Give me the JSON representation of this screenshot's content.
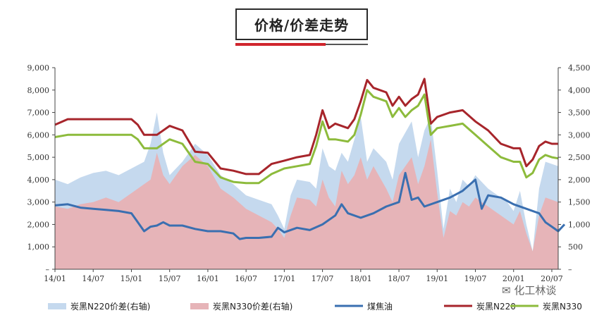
{
  "title": "价格/价差走势",
  "watermark": "化工林谈",
  "chart_data": {
    "type": "area",
    "x_ticks": [
      "14/01",
      "14/07",
      "15/01",
      "15/07",
      "16/01",
      "16/07",
      "17/01",
      "17/07",
      "18/01",
      "18/07",
      "19/01",
      "19/07",
      "20/01",
      "20/07"
    ],
    "y_left": {
      "ylim": [
        0,
        9000
      ],
      "ticks": [
        "–",
        "1,000",
        "2,000",
        "3,000",
        "4,000",
        "5,000",
        "6,000",
        "7,000",
        "8,000",
        "9,000"
      ]
    },
    "y_right": {
      "ylim": [
        0,
        4500
      ],
      "ticks": [
        "–",
        "500",
        "1,000",
        "1,500",
        "2,000",
        "2,500",
        "3,000",
        "3,500",
        "4,000",
        "4,500"
      ]
    },
    "x_domain": [
      0,
      79
    ],
    "series": [
      {
        "name": "炭黑N220价差(右轴)",
        "axis": "right",
        "kind": "area",
        "color": "#c5d9ee",
        "points": [
          [
            0,
            2000
          ],
          [
            2,
            1900
          ],
          [
            4,
            2050
          ],
          [
            6,
            2150
          ],
          [
            8,
            2200
          ],
          [
            10,
            2100
          ],
          [
            12,
            2250
          ],
          [
            14,
            2400
          ],
          [
            15,
            2800
          ],
          [
            16,
            3500
          ],
          [
            17,
            2600
          ],
          [
            18,
            2100
          ],
          [
            20,
            2400
          ],
          [
            22,
            2800
          ],
          [
            24,
            2550
          ],
          [
            26,
            2100
          ],
          [
            28,
            1900
          ],
          [
            30,
            1650
          ],
          [
            32,
            1550
          ],
          [
            34,
            1450
          ],
          [
            35,
            1200
          ],
          [
            36,
            900
          ],
          [
            37,
            1650
          ],
          [
            38,
            2000
          ],
          [
            40,
            1950
          ],
          [
            41,
            1800
          ],
          [
            42,
            2700
          ],
          [
            43,
            2300
          ],
          [
            44,
            2200
          ],
          [
            45,
            2600
          ],
          [
            46,
            2400
          ],
          [
            47,
            2900
          ],
          [
            48,
            3400
          ],
          [
            49,
            2400
          ],
          [
            50,
            2700
          ],
          [
            52,
            2400
          ],
          [
            53,
            2000
          ],
          [
            54,
            2800
          ],
          [
            56,
            3300
          ],
          [
            57,
            2500
          ],
          [
            58,
            3100
          ],
          [
            59,
            3400
          ],
          [
            60,
            2200
          ],
          [
            61,
            900
          ],
          [
            62,
            1800
          ],
          [
            63,
            1500
          ],
          [
            64,
            2000
          ],
          [
            65,
            1850
          ],
          [
            66,
            2100
          ],
          [
            67,
            1950
          ],
          [
            68,
            1800
          ],
          [
            69,
            1700
          ],
          [
            70,
            1600
          ],
          [
            71,
            1500
          ],
          [
            72,
            1300
          ],
          [
            73,
            1750
          ],
          [
            74,
            1000
          ],
          [
            75,
            400
          ],
          [
            76,
            1800
          ],
          [
            77,
            2400
          ],
          [
            78,
            2350
          ],
          [
            79,
            2300
          ]
        ]
      },
      {
        "name": "炭黑N330价差(右轴)",
        "axis": "right",
        "kind": "area",
        "color": "#e6b4b8",
        "points": [
          [
            0,
            1400
          ],
          [
            2,
            1350
          ],
          [
            4,
            1450
          ],
          [
            6,
            1500
          ],
          [
            8,
            1600
          ],
          [
            10,
            1500
          ],
          [
            12,
            1700
          ],
          [
            14,
            1900
          ],
          [
            15,
            2000
          ],
          [
            16,
            2600
          ],
          [
            17,
            2100
          ],
          [
            18,
            1900
          ],
          [
            20,
            2300
          ],
          [
            22,
            2550
          ],
          [
            24,
            2300
          ],
          [
            26,
            1800
          ],
          [
            28,
            1600
          ],
          [
            30,
            1350
          ],
          [
            32,
            1200
          ],
          [
            34,
            1050
          ],
          [
            35,
            900
          ],
          [
            36,
            700
          ],
          [
            37,
            1200
          ],
          [
            38,
            1600
          ],
          [
            40,
            1550
          ],
          [
            41,
            1400
          ],
          [
            42,
            2000
          ],
          [
            43,
            1600
          ],
          [
            44,
            1400
          ],
          [
            45,
            2200
          ],
          [
            46,
            1900
          ],
          [
            47,
            2100
          ],
          [
            48,
            2500
          ],
          [
            49,
            2000
          ],
          [
            50,
            2300
          ],
          [
            52,
            1800
          ],
          [
            53,
            1500
          ],
          [
            54,
            2100
          ],
          [
            56,
            2500
          ],
          [
            57,
            1900
          ],
          [
            58,
            2300
          ],
          [
            59,
            2900
          ],
          [
            60,
            1700
          ],
          [
            61,
            700
          ],
          [
            62,
            1300
          ],
          [
            63,
            1200
          ],
          [
            64,
            1500
          ],
          [
            65,
            1400
          ],
          [
            66,
            1600
          ],
          [
            67,
            1500
          ],
          [
            68,
            1400
          ],
          [
            69,
            1300
          ],
          [
            70,
            1200
          ],
          [
            71,
            1100
          ],
          [
            72,
            1000
          ],
          [
            73,
            1300
          ],
          [
            74,
            800
          ],
          [
            75,
            400
          ],
          [
            76,
            1200
          ],
          [
            77,
            1600
          ],
          [
            78,
            1550
          ],
          [
            79,
            1500
          ]
        ]
      },
      {
        "name": "煤焦油",
        "axis": "left",
        "kind": "line",
        "color": "#3a6fb0",
        "points": [
          [
            0,
            2850
          ],
          [
            2,
            2900
          ],
          [
            4,
            2750
          ],
          [
            6,
            2700
          ],
          [
            8,
            2650
          ],
          [
            10,
            2600
          ],
          [
            12,
            2500
          ],
          [
            13,
            2100
          ],
          [
            14,
            1700
          ],
          [
            15,
            1900
          ],
          [
            16,
            1950
          ],
          [
            17,
            2100
          ],
          [
            18,
            1950
          ],
          [
            20,
            1950
          ],
          [
            22,
            1800
          ],
          [
            24,
            1700
          ],
          [
            26,
            1700
          ],
          [
            28,
            1600
          ],
          [
            29,
            1350
          ],
          [
            30,
            1400
          ],
          [
            32,
            1400
          ],
          [
            34,
            1450
          ],
          [
            35,
            1850
          ],
          [
            36,
            1650
          ],
          [
            38,
            1850
          ],
          [
            40,
            1750
          ],
          [
            42,
            2000
          ],
          [
            44,
            2400
          ],
          [
            45,
            2900
          ],
          [
            46,
            2500
          ],
          [
            48,
            2300
          ],
          [
            50,
            2500
          ],
          [
            52,
            2800
          ],
          [
            54,
            3000
          ],
          [
            55,
            4300
          ],
          [
            56,
            3100
          ],
          [
            57,
            3200
          ],
          [
            58,
            2800
          ],
          [
            60,
            3000
          ],
          [
            62,
            3200
          ],
          [
            64,
            3500
          ],
          [
            66,
            4000
          ],
          [
            67,
            2700
          ],
          [
            68,
            3300
          ],
          [
            70,
            3200
          ],
          [
            72,
            2900
          ],
          [
            74,
            2700
          ],
          [
            76,
            2500
          ],
          [
            77,
            2100
          ],
          [
            78,
            1900
          ],
          [
            79,
            1700
          ],
          [
            80,
            2000
          ]
        ]
      },
      {
        "name": "炭黑N220",
        "axis": "left",
        "kind": "line",
        "color": "#a7252b",
        "points": [
          [
            0,
            6450
          ],
          [
            2,
            6700
          ],
          [
            4,
            6700
          ],
          [
            6,
            6700
          ],
          [
            8,
            6700
          ],
          [
            10,
            6700
          ],
          [
            12,
            6700
          ],
          [
            13,
            6450
          ],
          [
            14,
            6000
          ],
          [
            16,
            6000
          ],
          [
            18,
            6400
          ],
          [
            20,
            6200
          ],
          [
            22,
            5250
          ],
          [
            24,
            5200
          ],
          [
            26,
            4500
          ],
          [
            28,
            4400
          ],
          [
            30,
            4250
          ],
          [
            32,
            4250
          ],
          [
            34,
            4700
          ],
          [
            36,
            4850
          ],
          [
            38,
            5000
          ],
          [
            40,
            5100
          ],
          [
            41,
            6000
          ],
          [
            42,
            7100
          ],
          [
            43,
            6300
          ],
          [
            44,
            6500
          ],
          [
            46,
            6300
          ],
          [
            47,
            6700
          ],
          [
            48,
            7500
          ],
          [
            49,
            8450
          ],
          [
            50,
            8100
          ],
          [
            52,
            7900
          ],
          [
            53,
            7300
          ],
          [
            54,
            7700
          ],
          [
            55,
            7300
          ],
          [
            56,
            7600
          ],
          [
            57,
            7800
          ],
          [
            58,
            8500
          ],
          [
            59,
            6500
          ],
          [
            60,
            6800
          ],
          [
            62,
            7000
          ],
          [
            64,
            7100
          ],
          [
            66,
            6600
          ],
          [
            68,
            6200
          ],
          [
            70,
            5600
          ],
          [
            72,
            5400
          ],
          [
            73,
            5400
          ],
          [
            74,
            4600
          ],
          [
            75,
            4900
          ],
          [
            76,
            5500
          ],
          [
            77,
            5700
          ],
          [
            78,
            5600
          ],
          [
            79,
            5600
          ]
        ]
      },
      {
        "name": "炭黑N330",
        "axis": "left",
        "kind": "line",
        "color": "#8dbb3c",
        "points": [
          [
            0,
            5900
          ],
          [
            2,
            6000
          ],
          [
            4,
            6000
          ],
          [
            6,
            6000
          ],
          [
            8,
            6000
          ],
          [
            10,
            6000
          ],
          [
            12,
            6000
          ],
          [
            13,
            5800
          ],
          [
            14,
            5400
          ],
          [
            16,
            5400
          ],
          [
            18,
            5800
          ],
          [
            20,
            5600
          ],
          [
            22,
            4800
          ],
          [
            24,
            4700
          ],
          [
            26,
            4100
          ],
          [
            28,
            3900
          ],
          [
            30,
            3850
          ],
          [
            32,
            3850
          ],
          [
            34,
            4250
          ],
          [
            36,
            4500
          ],
          [
            38,
            4600
          ],
          [
            40,
            4700
          ],
          [
            41,
            5500
          ],
          [
            42,
            6600
          ],
          [
            43,
            5800
          ],
          [
            44,
            5800
          ],
          [
            46,
            5700
          ],
          [
            47,
            6000
          ],
          [
            48,
            6900
          ],
          [
            49,
            8000
          ],
          [
            50,
            7700
          ],
          [
            52,
            7500
          ],
          [
            53,
            6800
          ],
          [
            54,
            7200
          ],
          [
            55,
            6800
          ],
          [
            56,
            7100
          ],
          [
            57,
            7300
          ],
          [
            58,
            7800
          ],
          [
            59,
            6000
          ],
          [
            60,
            6300
          ],
          [
            62,
            6400
          ],
          [
            64,
            6500
          ],
          [
            66,
            6000
          ],
          [
            68,
            5500
          ],
          [
            70,
            5000
          ],
          [
            72,
            4800
          ],
          [
            73,
            4800
          ],
          [
            74,
            4100
          ],
          [
            75,
            4300
          ],
          [
            76,
            4900
          ],
          [
            77,
            5100
          ],
          [
            78,
            5000
          ],
          [
            79,
            4950
          ]
        ]
      }
    ]
  }
}
